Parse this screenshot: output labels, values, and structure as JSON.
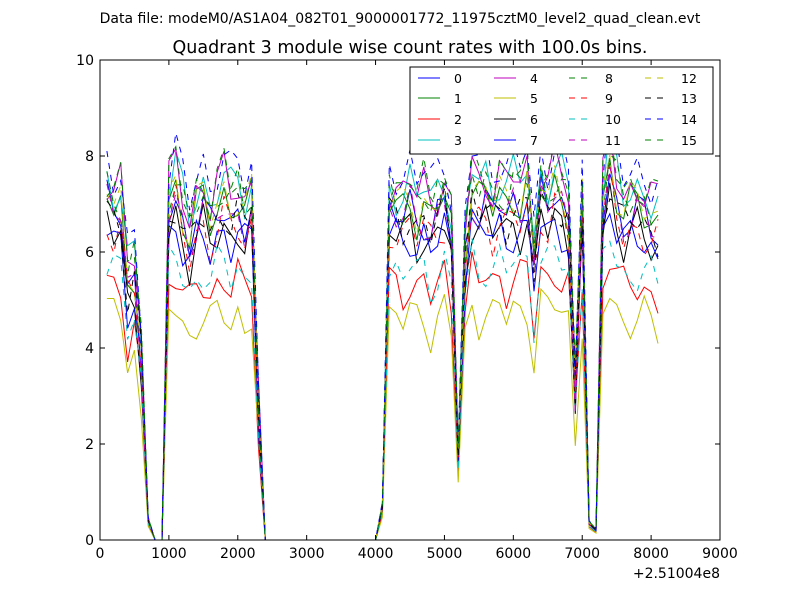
{
  "chart_data": {
    "type": "line",
    "suptitle": "Data file: modeM0/AS1A04_082T01_9000001772_11975cztM0_level2_quad_clean.evt",
    "title": "Quadrant 3 module wise count rates with 100.0s bins.",
    "xlabel": "",
    "ylabel": "",
    "x_offset_label": "+2.51004e8",
    "xlim": [
      0,
      9000
    ],
    "ylim": [
      0,
      10
    ],
    "xticks": [
      0,
      1000,
      2000,
      3000,
      4000,
      5000,
      6000,
      7000,
      8000,
      9000
    ],
    "yticks": [
      0,
      2,
      4,
      6,
      8,
      10
    ],
    "xtick_labels": [
      "0",
      "1000",
      "2000",
      "3000",
      "4000",
      "5000",
      "6000",
      "7000",
      "8000",
      "9000"
    ],
    "ytick_labels": [
      "0",
      "2",
      "4",
      "6",
      "8",
      "10"
    ],
    "legend_position": "top-right",
    "x": [
      100,
      200,
      300,
      400,
      500,
      600,
      700,
      800,
      900,
      1000,
      1100,
      1200,
      1300,
      1400,
      1500,
      1600,
      1700,
      1800,
      1900,
      2000,
      2100,
      2200,
      2300,
      2400,
      2500,
      2600,
      2700,
      2800,
      2900,
      3000,
      3100,
      3200,
      3300,
      3400,
      3500,
      3600,
      3700,
      3800,
      3900,
      4000,
      4100,
      4200,
      4300,
      4400,
      4500,
      4600,
      4700,
      4800,
      4900,
      5000,
      5100,
      5200,
      5300,
      5400,
      5500,
      5600,
      5700,
      5800,
      5900,
      6000,
      6100,
      6200,
      6300,
      6400,
      6500,
      6600,
      6700,
      6800,
      6900,
      7000,
      7100,
      7200,
      7300,
      7400,
      7500,
      7600,
      7700,
      7800,
      7900,
      8000,
      8100
    ],
    "base_profile": [
      1.0,
      0.96,
      0.97,
      0.75,
      0.78,
      0.55,
      0.06,
      0.0,
      0.0,
      0.98,
      1.03,
      0.94,
      0.87,
      0.95,
      0.98,
      0.92,
      0.97,
      1.0,
      0.95,
      0.98,
      0.93,
      0.98,
      0.4,
      0.0,
      0.0,
      0.0,
      0.0,
      0.0,
      0.0,
      0.0,
      0.0,
      0.0,
      0.0,
      0.0,
      0.0,
      0.0,
      0.0,
      0.0,
      0.0,
      0.0,
      0.1,
      0.97,
      0.96,
      0.95,
      0.99,
      0.94,
      0.97,
      0.92,
      0.96,
      1.0,
      0.9,
      0.25,
      0.85,
      1.02,
      0.98,
      1.0,
      0.96,
      1.0,
      0.97,
      1.0,
      0.98,
      1.02,
      0.8,
      1.02,
      0.98,
      1.03,
      1.0,
      0.95,
      0.45,
      0.97,
      0.05,
      0.03,
      0.98,
      1.1,
      1.0,
      0.94,
      0.96,
      0.97,
      0.95,
      0.93,
      0.92
    ],
    "series": [
      {
        "name": "0",
        "color": "#0000ff",
        "dash": "solid",
        "level": 7.0
      },
      {
        "name": "1",
        "color": "#008000",
        "dash": "solid",
        "level": 7.2
      },
      {
        "name": "2",
        "color": "#ff0000",
        "dash": "solid",
        "level": 5.5
      },
      {
        "name": "3",
        "color": "#00bfbf",
        "dash": "solid",
        "level": 7.6
      },
      {
        "name": "4",
        "color": "#bf00bf",
        "dash": "solid",
        "level": 7.6
      },
      {
        "name": "5",
        "color": "#bfbf00",
        "dash": "solid",
        "level": 4.8
      },
      {
        "name": "6",
        "color": "#000000",
        "dash": "solid",
        "level": 6.6
      },
      {
        "name": "7",
        "color": "#0000ff",
        "dash": "solid",
        "level": 6.5
      },
      {
        "name": "8",
        "color": "#008000",
        "dash": "dashed",
        "level": 7.4
      },
      {
        "name": "9",
        "color": "#ff0000",
        "dash": "dashed",
        "level": 6.7
      },
      {
        "name": "10",
        "color": "#00bfbf",
        "dash": "dashed",
        "level": 5.8
      },
      {
        "name": "11",
        "color": "#bf00bf",
        "dash": "dashed",
        "level": 7.0
      },
      {
        "name": "12",
        "color": "#bfbf00",
        "dash": "dashed",
        "level": 7.3
      },
      {
        "name": "13",
        "color": "#000000",
        "dash": "dashed",
        "level": 6.9
      },
      {
        "name": "14",
        "color": "#0000ff",
        "dash": "dashed",
        "level": 8.0
      },
      {
        "name": "15",
        "color": "#008000",
        "dash": "dashed",
        "level": 7.7
      }
    ]
  }
}
